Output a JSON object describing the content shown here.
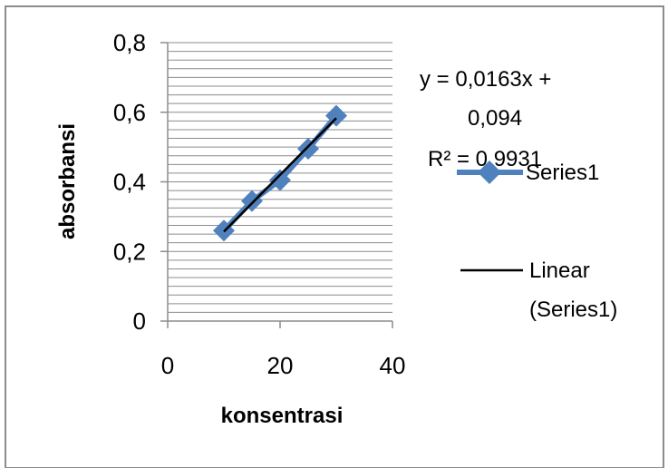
{
  "chart_data": {
    "type": "scatter",
    "title": "",
    "xlabel": "konsentrasi",
    "ylabel": "absorbansi",
    "xlim": [
      0,
      40
    ],
    "ylim": [
      0,
      0.8
    ],
    "x_ticks": [
      "0",
      "20",
      "40"
    ],
    "y_ticks": [
      "0",
      "0,2",
      "0,4",
      "0,6",
      "0,8"
    ],
    "y_tick_values": [
      0,
      0.2,
      0.4,
      0.6,
      0.8
    ],
    "x_tick_values": [
      0,
      20,
      40
    ],
    "y_minor_step": 0.025,
    "grid": "horizontal",
    "legend_position": "right",
    "series": [
      {
        "name": "Series1",
        "color": "#4F81BD",
        "marker": "diamond",
        "x": [
          10,
          15,
          20,
          25,
          30
        ],
        "y": [
          0.26,
          0.345,
          0.405,
          0.495,
          0.59
        ]
      }
    ],
    "trendline": {
      "name": "Linear (Series1)",
      "color": "#000000",
      "slope": 0.0163,
      "intercept": 0.094,
      "x_range": [
        10,
        30
      ]
    },
    "equation_lines": [
      "y = 0,0163x +",
      "0,094"
    ],
    "r2_text": "R² = 0,9931",
    "legend": {
      "series_label": "Series1",
      "trend_label_lines": [
        "Linear",
        "(Series1)"
      ]
    }
  }
}
